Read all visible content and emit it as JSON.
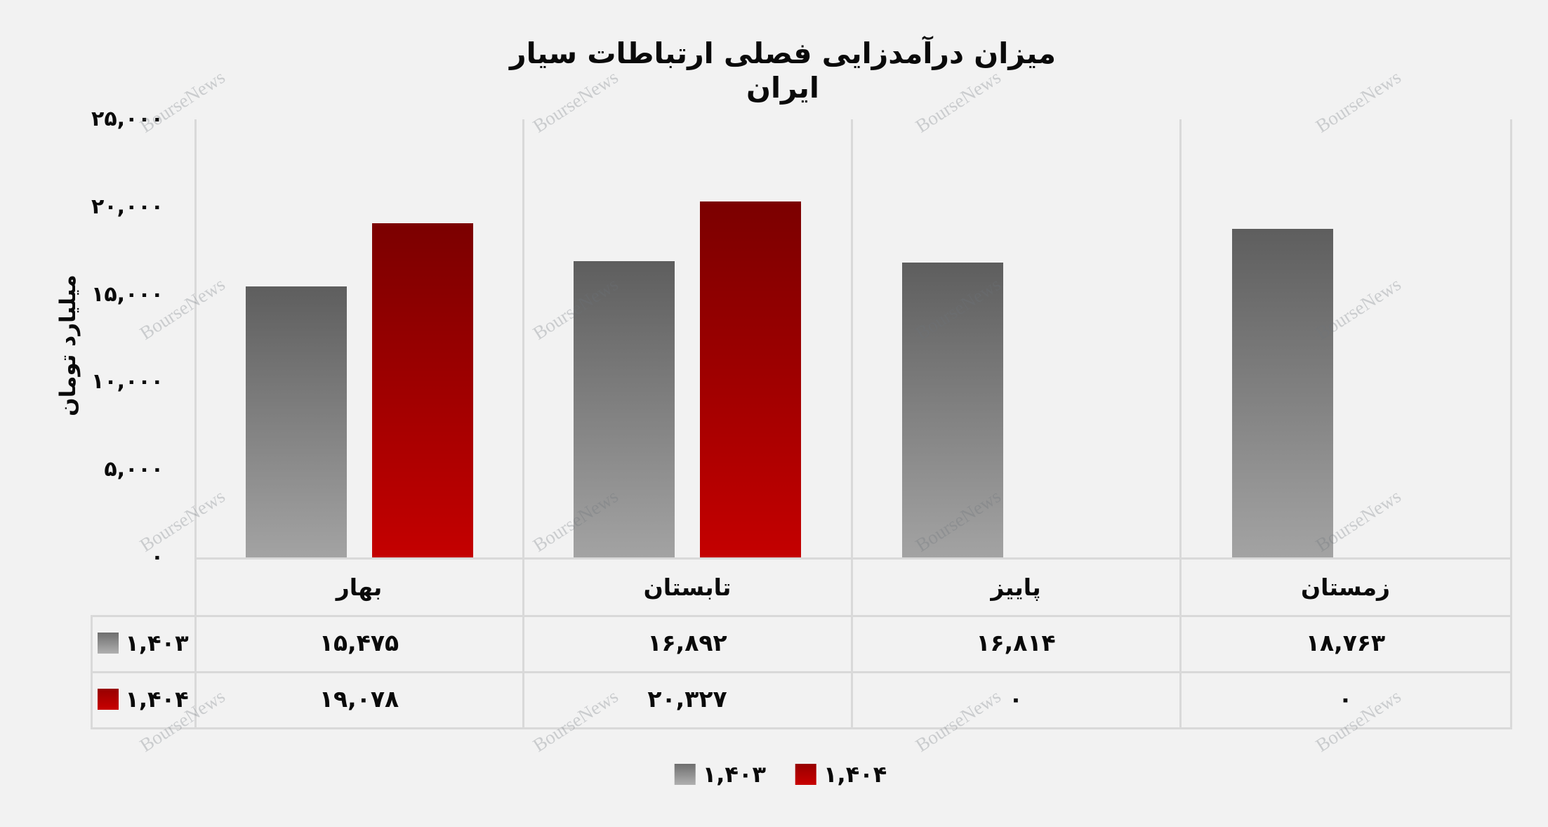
{
  "page": {
    "background_color": "#f2f2f2",
    "grid_line_color": "#d9d9d9",
    "text_color": "#0a0a0a",
    "watermark_text": "BourseNews"
  },
  "chart_data": {
    "type": "bar",
    "title": "میزان درآمدزایی فصلی ارتباطات سیار ایران",
    "xlabel": "",
    "ylabel": "میلیارد تومان",
    "ylim": [
      0,
      25000
    ],
    "grid": "vertical-category-separators",
    "legend_position": "bottom",
    "y_tick_labels": [
      "۲۵,۰۰۰",
      "۲۰,۰۰۰",
      "۱۵,۰۰۰",
      "۱۰,۰۰۰",
      "۵,۰۰۰",
      "۰"
    ],
    "y_tick_values": [
      25000,
      20000,
      15000,
      10000,
      5000,
      0
    ],
    "categories": [
      "بهار",
      "تابستان",
      "پاییز",
      "زمستان"
    ],
    "categories_en": [
      "spring",
      "summer",
      "autumn",
      "winter"
    ],
    "series": [
      {
        "name": "۱,۴۰۳",
        "key": "1403",
        "values": [
          15475,
          16892,
          16814,
          18763
        ],
        "values_fa": [
          "۱۵,۴۷۵",
          "۱۶,۸۹۲",
          "۱۶,۸۱۴",
          "۱۸,۷۶۳"
        ],
        "color_top": "#5e5e5e",
        "color_bottom": "#a3a3a3"
      },
      {
        "name": "۱,۴۰۴",
        "key": "1404",
        "values": [
          19078,
          20327,
          0,
          0
        ],
        "values_fa": [
          "۱۹,۰۷۸",
          "۲۰,۳۲۷",
          "۰",
          "۰"
        ],
        "color_top": "#7b0000",
        "color_bottom": "#c40000"
      }
    ]
  },
  "legend": {
    "items": [
      {
        "label": "۱,۴۰۳",
        "key": "1403",
        "swatch_top": "#6e6e6e",
        "swatch_bottom": "#b0b0b0"
      },
      {
        "label": "۱,۴۰۴",
        "key": "1404",
        "swatch_top": "#970000",
        "swatch_bottom": "#c80000"
      }
    ]
  }
}
